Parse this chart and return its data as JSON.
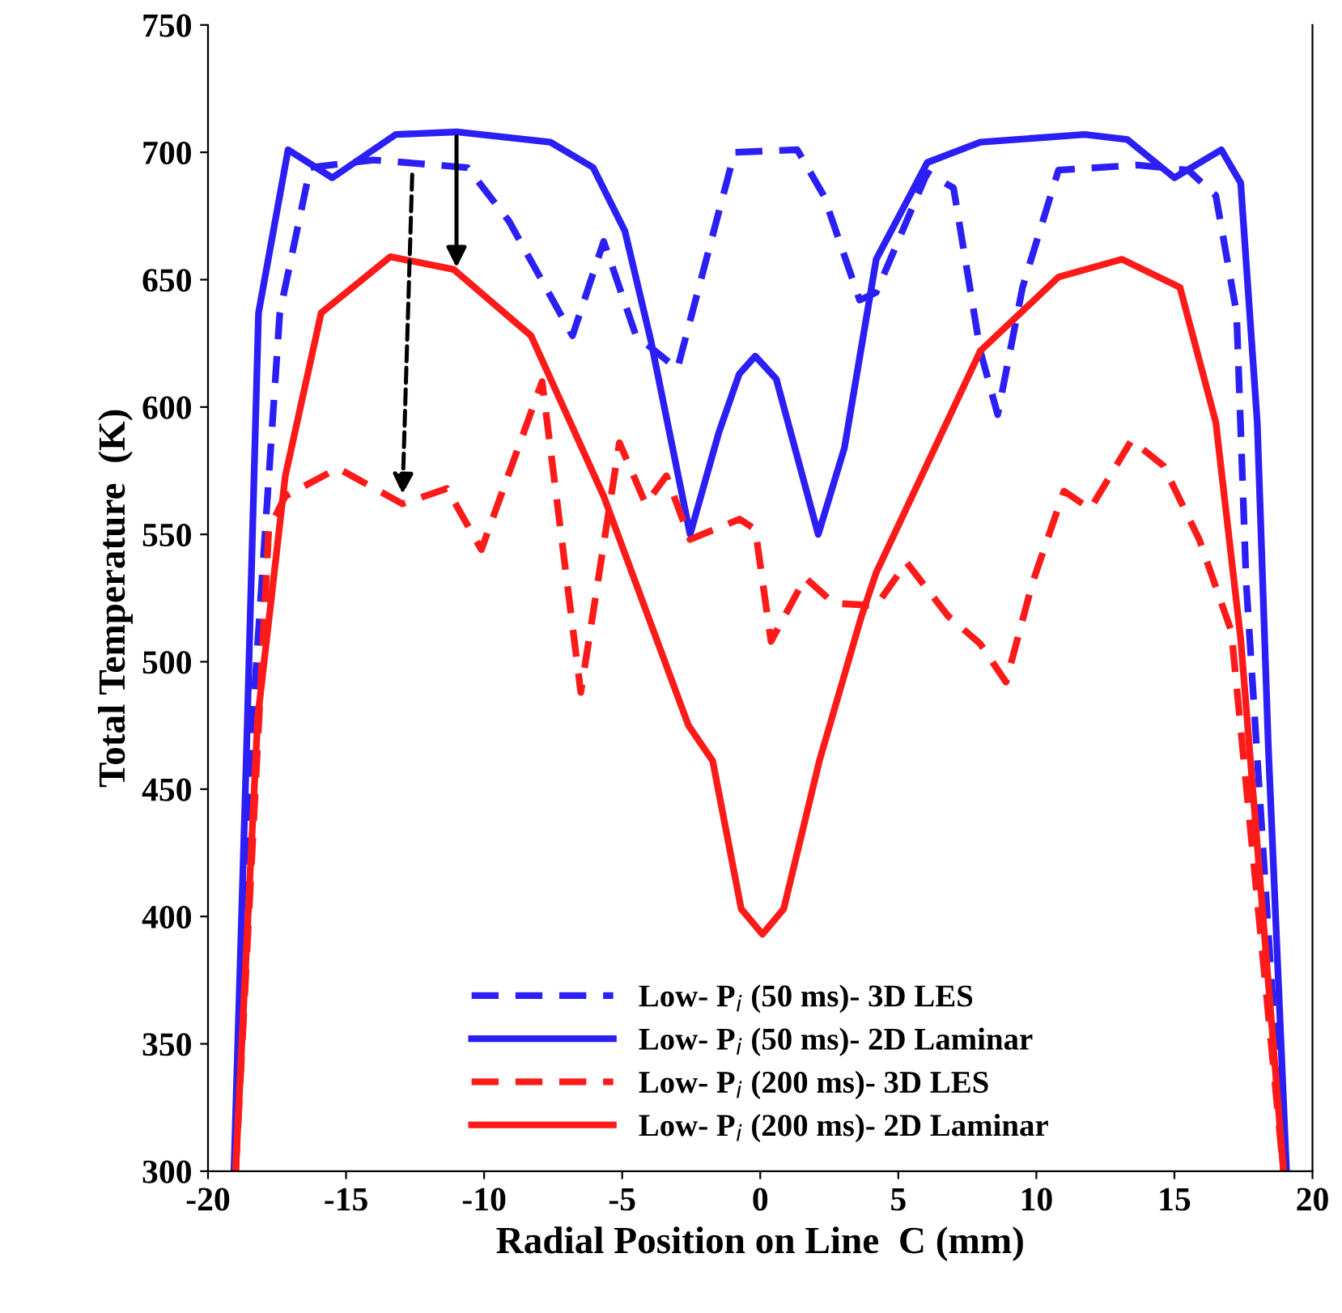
{
  "chart_data": {
    "type": "line",
    "xlabel": "Radial Position on Line  C (mm)",
    "ylabel": "Total Temperature  (K)",
    "xlim": [
      -20,
      20
    ],
    "xticks": [
      -20,
      -15,
      -10,
      -5,
      0,
      5,
      10,
      15,
      20
    ],
    "ylim": [
      300,
      750
    ],
    "yticks": [
      300,
      350,
      400,
      450,
      500,
      550,
      600,
      650,
      700,
      750
    ],
    "grid": false,
    "legend": "bottom",
    "marker": "none",
    "series": [
      {
        "name": "Low- P$_{i}$ (50 ms)- 3D LES",
        "color": "#2b1ff5",
        "line_style": "dashed",
        "x": [
          -19.0,
          -18.4,
          -17.4,
          -16.3,
          -14.0,
          -10.6,
          -9.1,
          -6.8,
          -5.67,
          -4.5,
          -3.0,
          -0.93,
          1.34,
          2.3,
          3.6,
          4.2,
          6.05,
          7.0,
          7.97,
          8.6,
          9.5,
          10.8,
          13.65,
          15.5,
          16.5,
          17.25,
          17.6,
          18.95
        ],
        "values": [
          300,
          475,
          637,
          694,
          697,
          694,
          673,
          628,
          665,
          628,
          615,
          700,
          701,
          683,
          642,
          645,
          692,
          686,
          622,
          597,
          647,
          693,
          695,
          693,
          683,
          637,
          531,
          300
        ]
      },
      {
        "name": "Low- P$_{i}$ (50 ms)- 2D Laminar",
        "color": "#2b1ff5",
        "line_style": "solid",
        "x": [
          -19.06,
          -18.6,
          -18.17,
          -17.1,
          -15.5,
          -13.2,
          -11.0,
          -7.6,
          -6.05,
          -4.9,
          -3.96,
          -2.54,
          -1.5,
          -0.76,
          -0.18,
          0.58,
          2.1,
          3.05,
          4.2,
          6.05,
          7.97,
          11.75,
          13.3,
          15.0,
          16.7,
          17.4,
          18.0,
          18.4,
          19.06
        ],
        "values": [
          300,
          467,
          637,
          701,
          690,
          707,
          708,
          704,
          694,
          669,
          626,
          550,
          590,
          613,
          620,
          611,
          550,
          584,
          658,
          696,
          704,
          707,
          705,
          690,
          701,
          688,
          594,
          467,
          300
        ]
      },
      {
        "name": "Low- P$_{i}$ (200 ms)- 3D LES",
        "color": "#ff1a1a",
        "line_style": "dashed",
        "x": [
          -19.0,
          -17.8,
          -17.2,
          -15.3,
          -12.96,
          -11.35,
          -10.1,
          -7.9,
          -6.5,
          -5.1,
          -4.15,
          -3.4,
          -2.54,
          -0.75,
          -0.18,
          0.39,
          1.63,
          2.66,
          4.2,
          5.3,
          6.8,
          7.97,
          8.9,
          9.86,
          11.0,
          11.95,
          13.45,
          14.6,
          15.9,
          17.06,
          18.95
        ],
        "values": [
          300,
          552,
          565,
          576,
          562,
          568,
          544,
          610,
          488,
          586,
          562,
          573,
          548,
          556,
          552,
          508,
          533,
          523,
          522,
          539,
          518,
          507,
          492,
          531,
          567,
          560,
          587,
          577,
          548,
          512,
          300
        ]
      },
      {
        "name": "Low- P$_{i}$ (200 ms)- 2D Laminar",
        "color": "#ff1a1a",
        "line_style": "solid",
        "x": [
          -19.0,
          -18.2,
          -17.2,
          -15.9,
          -13.4,
          -11.1,
          -8.3,
          -5.67,
          -2.6,
          -1.72,
          -0.69,
          0.08,
          0.85,
          2.14,
          3.67,
          4.2,
          7.97,
          10.8,
          13.1,
          15.2,
          16.5,
          17.4,
          18.95
        ],
        "values": [
          300,
          478,
          573,
          637,
          659,
          654,
          628,
          565,
          475,
          461,
          403,
          393,
          403,
          461,
          518,
          535,
          622,
          651,
          658,
          647,
          594,
          509,
          300
        ]
      }
    ]
  }
}
